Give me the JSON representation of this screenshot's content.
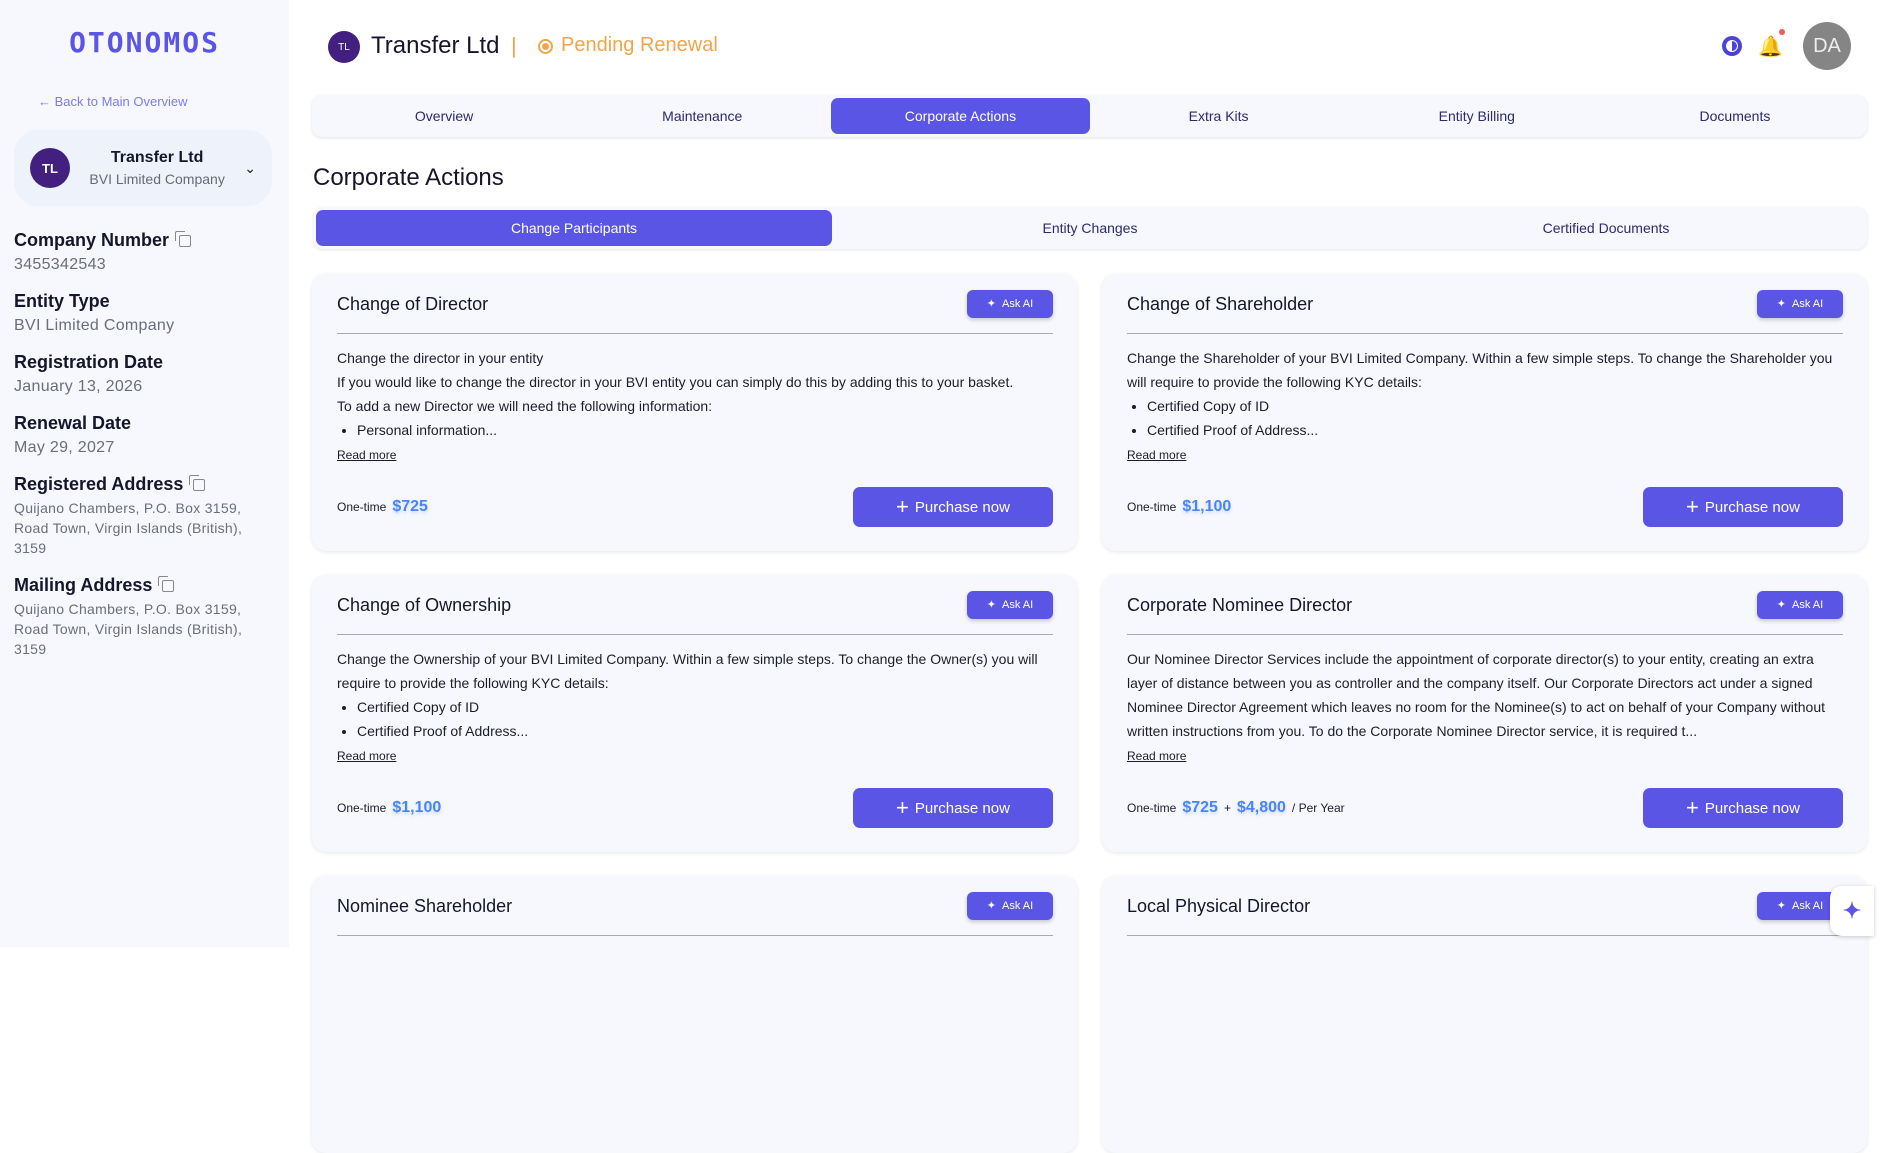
{
  "sidebar": {
    "logo": "OTONOMOS",
    "back_link": "← Back to Main Overview",
    "entity": {
      "initials": "TL",
      "name": "Transfer Ltd",
      "type": "BVI Limited Company"
    },
    "fields": [
      {
        "label": "Company Number",
        "value": "3455342543",
        "copy": true
      },
      {
        "label": "Entity Type",
        "value": "BVI Limited Company",
        "copy": false
      },
      {
        "label": "Registration Date",
        "value": "January 13, 2026",
        "copy": false
      },
      {
        "label": "Renewal Date",
        "value": "May 29, 2027",
        "copy": false
      },
      {
        "label": "Registered Address",
        "value": "Quijano Chambers, P.O. Box 3159, Road Town, Virgin Islands (British), 3159",
        "copy": true
      },
      {
        "label": "Mailing Address",
        "value": "Quijano Chambers, P.O. Box 3159, Road Town, Virgin Islands (British), 3159",
        "copy": true
      }
    ]
  },
  "header": {
    "initials": "TL",
    "title": "Transfer Ltd",
    "separator": "|",
    "status": "Pending Renewal",
    "user_initials": "DA",
    "status_color": "#f0a54a",
    "accent": "#5b55e6"
  },
  "tabs": [
    "Overview",
    "Maintenance",
    "Corporate Actions",
    "Extra Kits",
    "Entity Billing",
    "Documents"
  ],
  "active_tab": 2,
  "page_title": "Corporate Actions",
  "subtabs": [
    "Change Participants",
    "Entity Changes",
    "Certified Documents"
  ],
  "active_subtab": 0,
  "labels": {
    "ask_ai": "Ask AI",
    "read_more": "Read more",
    "one_time": "One-time",
    "purchase": "Purchase  now",
    "plus": "+",
    "per_year": "/ Per Year"
  },
  "cards": [
    {
      "title": "Change of Director",
      "paras": [
        "Change the director in your entity",
        "If you would like to change the director in your BVI entity you can simply do this by adding this to your basket.",
        "To add a new Director we will need the following information:"
      ],
      "bullets": [
        "Personal information..."
      ],
      "prices": [
        "$725"
      ],
      "per_year": false
    },
    {
      "title": "Change of Shareholder",
      "paras": [
        "Change the Shareholder of your BVI Limited Company. Within a few simple steps. To change the Shareholder you will require to provide the following KYC details:"
      ],
      "bullets": [
        "Certified Copy of ID",
        "Certified Proof of Address..."
      ],
      "prices": [
        "$1,100"
      ],
      "per_year": false
    },
    {
      "title": "Change of Ownership",
      "paras": [
        "Change the Ownership of your BVI Limited Company. Within a few simple steps. To change the Owner(s) you will require to provide the following KYC details:"
      ],
      "bullets": [
        "Certified Copy of ID",
        "Certified Proof of Address..."
      ],
      "prices": [
        "$1,100"
      ],
      "per_year": false
    },
    {
      "title": "Corporate Nominee Director",
      "paras": [
        "Our Nominee Director Services include the appointment of corporate director(s) to your entity, creating an extra layer of distance between you as controller and the company itself. Our Corporate Directors act under a signed Nominee Director Agreement which leaves no room for the Nominee(s) to act on behalf of your Company without written instructions from you. To do the Corporate Nominee Director service, it is required t..."
      ],
      "bullets": [],
      "prices": [
        "$725",
        "$4,800"
      ],
      "per_year": true
    },
    {
      "title": "Nominee Shareholder",
      "paras": [],
      "bullets": [],
      "prices": [],
      "per_year": false
    },
    {
      "title": "Local Physical Director",
      "paras": [],
      "bullets": [],
      "prices": [],
      "per_year": false
    }
  ]
}
